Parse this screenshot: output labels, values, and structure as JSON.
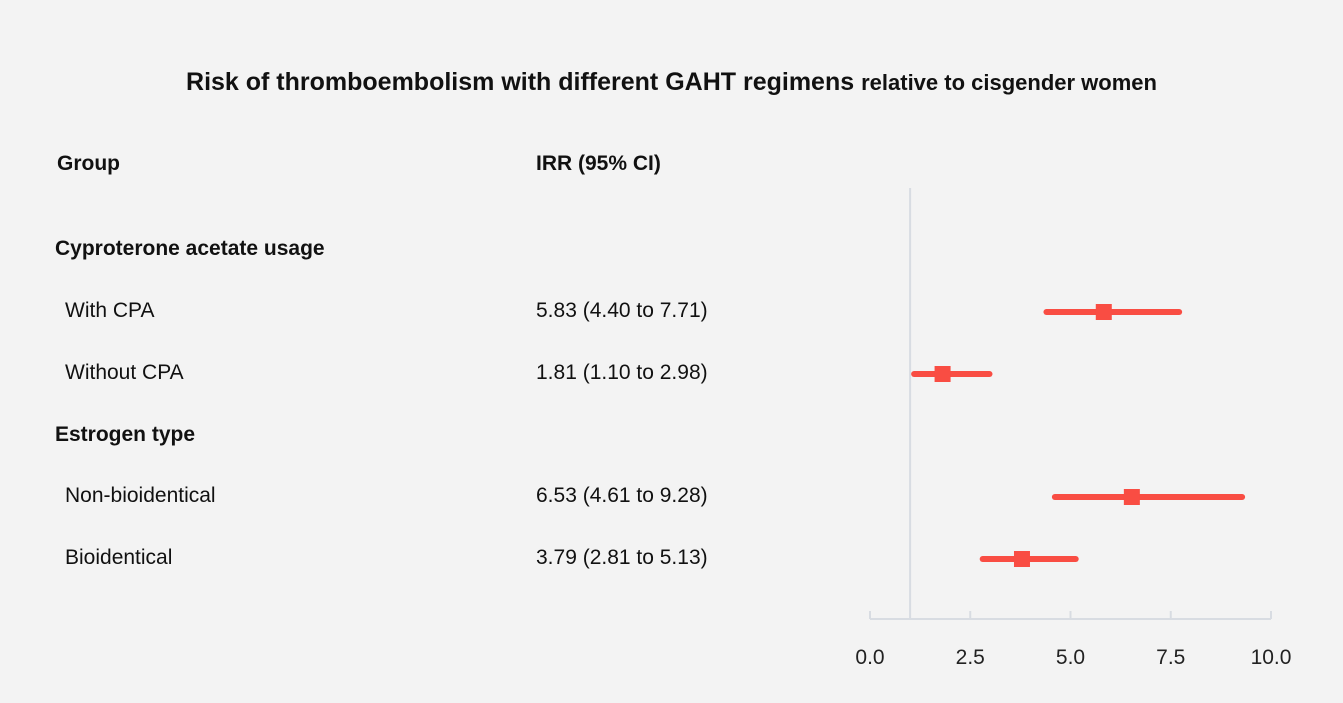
{
  "chart_data": {
    "type": "forest",
    "title": "Risk of thromboembolism with different GAHT regimens",
    "subtitle": "relative to cisgender women",
    "columns": [
      "Group",
      "IRR (95% CI)"
    ],
    "groups": [
      {
        "label": "Cyproterone acetate usage",
        "rows": [
          {
            "label": "With CPA",
            "text": "5.83 (4.40 to 7.71)",
            "estimate": 5.83,
            "low": 4.4,
            "high": 7.71
          },
          {
            "label": "Without CPA",
            "text": "1.81 (1.10 to 2.98)",
            "estimate": 1.81,
            "low": 1.1,
            "high": 2.98
          }
        ]
      },
      {
        "label": "Estrogen type",
        "rows": [
          {
            "label": "Non-bioidentical",
            "text": "6.53 (4.61 to 9.28)",
            "estimate": 6.53,
            "low": 4.61,
            "high": 9.28
          },
          {
            "label": "Bioidentical",
            "text": "3.79 (2.81 to 5.13)",
            "estimate": 3.79,
            "low": 2.81,
            "high": 5.13
          }
        ]
      }
    ],
    "reference_line": 1.0,
    "xlim": [
      0,
      10
    ],
    "xticks": [
      "0.0",
      "2.5",
      "5.0",
      "7.5",
      "10.0"
    ],
    "xtick_values": [
      0,
      2.5,
      5,
      7.5,
      10
    ],
    "grid": false,
    "colors": {
      "marker": "#f94d43",
      "reference": "#d8dce2",
      "axis": "#d8dce2",
      "background": "#f3f3f3"
    }
  }
}
